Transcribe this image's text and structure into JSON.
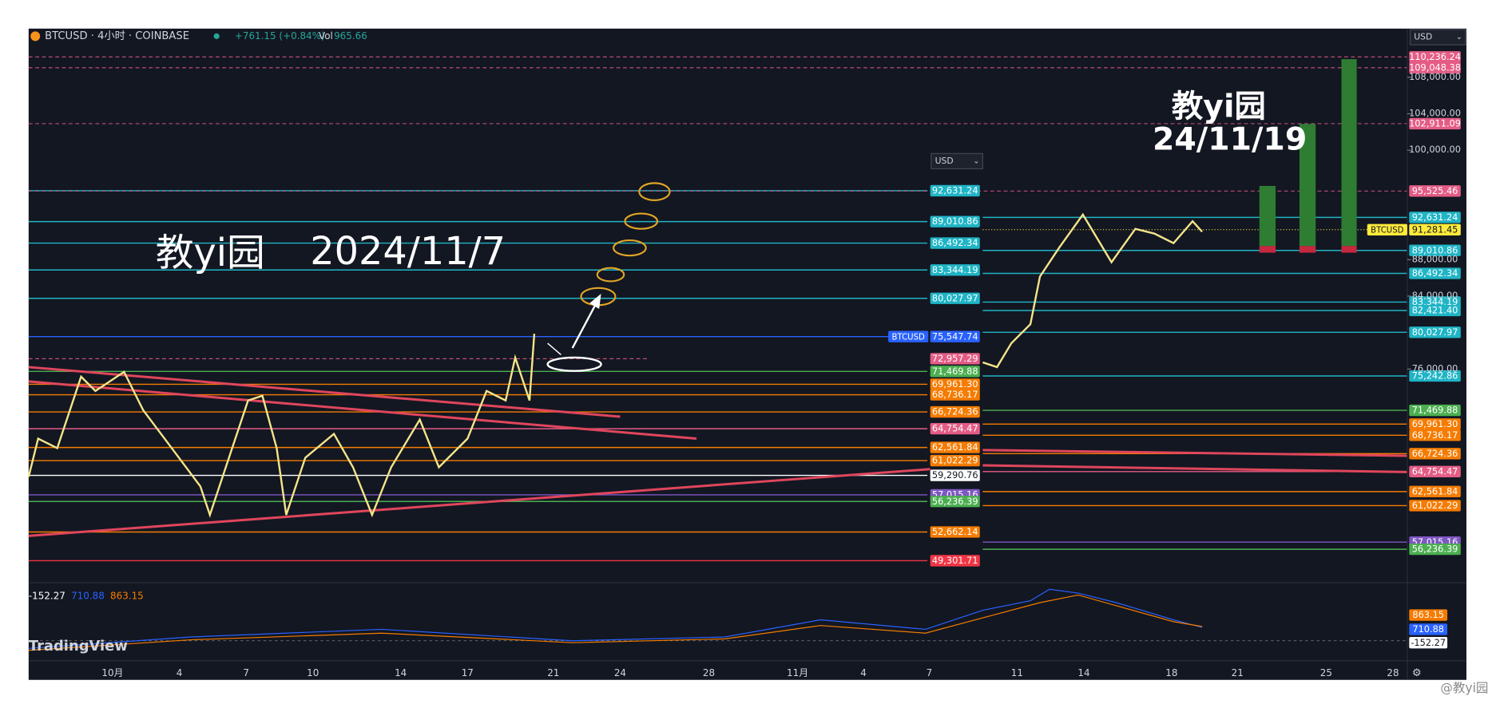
{
  "header": {
    "symbol": "BTCUSD · 4小时 · COINBASE",
    "change": "+761.15 (+0.84%)",
    "vol_label": "Vol",
    "volume": "965.66"
  },
  "currency": [
    "USD",
    "USD"
  ],
  "left_pane": {
    "annotations": [
      "教yi园",
      "2024/11/7"
    ],
    "levels": [
      {
        "value": 92631.24,
        "label": "92,631.24",
        "color": "#1fb5c6"
      },
      {
        "value": 89010.86,
        "label": "89,010.86",
        "color": "#1fb5c6"
      },
      {
        "value": 86492.34,
        "label": "86,492.34",
        "color": "#1fb5c6"
      },
      {
        "value": 83344.19,
        "label": "83,344.19",
        "color": "#1fb5c6"
      },
      {
        "value": 80027.97,
        "label": "80,027.97",
        "color": "#1fb5c6"
      },
      {
        "value": 75547.74,
        "label": "75,547.74",
        "color": "#2962ff",
        "tag": "BTCUSD"
      },
      {
        "value": 72957.29,
        "label": "72,957.29",
        "color": "#e45c86",
        "style": "dashed"
      },
      {
        "value": 71469.88,
        "label": "71,469.88",
        "color": "#4caf50"
      },
      {
        "value": 69961.3,
        "label": "69,961.30",
        "color": "#f57c00"
      },
      {
        "value": 68736.17,
        "label": "68,736.17",
        "color": "#f57c00"
      },
      {
        "value": 66724.36,
        "label": "66,724.36",
        "color": "#f57c00"
      },
      {
        "value": 64754.47,
        "label": "64,754.47",
        "color": "#e45c86"
      },
      {
        "value": 62561.84,
        "label": "62,561.84",
        "color": "#f57c00"
      },
      {
        "value": 61022.29,
        "label": "61,022.29",
        "color": "#f57c00"
      },
      {
        "value": 59290.76,
        "label": "59,290.76",
        "color": "#ffffff"
      },
      {
        "value": 57015.16,
        "label": "57,015.16",
        "color": "#7e57c2"
      },
      {
        "value": 56236.39,
        "label": "56,236.39",
        "color": "#4caf50"
      },
      {
        "value": 52662.14,
        "label": "52,662.14",
        "color": "#f57c00"
      },
      {
        "value": 49301.71,
        "label": "49,301.71",
        "color": "#f23645"
      }
    ]
  },
  "right_pane": {
    "annotations": [
      "教yi园",
      "24/11/19"
    ],
    "axis_ticks": [
      {
        "value": 108000,
        "label": "108,000.00"
      },
      {
        "value": 104000,
        "label": "104,000.00"
      },
      {
        "value": 100000,
        "label": "100,000.00"
      },
      {
        "value": 88000,
        "label": "88,000.00"
      },
      {
        "value": 84000,
        "label": "84,000.00"
      },
      {
        "value": 76000,
        "label": "76,000.00"
      }
    ],
    "levels": [
      {
        "value": 110236.24,
        "label": "110,236.24",
        "color": "#e45c86",
        "style": "dashed"
      },
      {
        "value": 109048.38,
        "label": "109,048.38",
        "color": "#e45c86",
        "style": "dashed"
      },
      {
        "value": 102911.09,
        "label": "102,911.09",
        "color": "#e45c86",
        "style": "dashed"
      },
      {
        "value": 95525.46,
        "label": "95,525.46",
        "color": "#e45c86",
        "style": "dashed"
      },
      {
        "value": 92631.24,
        "label": "92,631.24",
        "color": "#1fb5c6"
      },
      {
        "value": 91281.45,
        "label": "91,281.45",
        "color": "#ffeb3b",
        "tag": "BTCUSD",
        "style": "dotted"
      },
      {
        "value": 89010.86,
        "label": "89,010.86",
        "color": "#1fb5c6"
      },
      {
        "value": 86492.34,
        "label": "86,492.34",
        "color": "#1fb5c6"
      },
      {
        "value": 83344.19,
        "label": "83,344.19",
        "color": "#1fb5c6"
      },
      {
        "value": 82421.4,
        "label": "82,421.40",
        "color": "#1fb5c6"
      },
      {
        "value": 80027.97,
        "label": "80,027.97",
        "color": "#1fb5c6"
      },
      {
        "value": 75242.86,
        "label": "75,242.86",
        "color": "#1fb5c6"
      },
      {
        "value": 71469.88,
        "label": "71,469.88",
        "color": "#4caf50"
      },
      {
        "value": 69961.3,
        "label": "69,961.30",
        "color": "#f57c00"
      },
      {
        "value": 68736.17,
        "label": "68,736.17",
        "color": "#f57c00"
      },
      {
        "value": 66724.36,
        "label": "66,724.36",
        "color": "#f57c00"
      },
      {
        "value": 64754.47,
        "label": "64,754.47",
        "color": "#e45c86"
      },
      {
        "value": 62561.84,
        "label": "62,561.84",
        "color": "#f57c00"
      },
      {
        "value": 61022.29,
        "label": "61,022.29",
        "color": "#f57c00"
      },
      {
        "value": 57015.16,
        "label": "57,015.16",
        "color": "#7e57c2"
      },
      {
        "value": 56236.39,
        "label": "56,236.39",
        "color": "#4caf50"
      }
    ]
  },
  "macd": {
    "values": [
      {
        "label": "-152.27",
        "color": "#ffffff"
      },
      {
        "label": "710.88",
        "color": "#2962ff"
      },
      {
        "label": "863.15",
        "color": "#f57c00"
      }
    ]
  },
  "x_axis": [
    "10月",
    "4",
    "7",
    "10",
    "14",
    "17",
    "21",
    "24",
    "28",
    "11月",
    "4",
    "7",
    "11",
    "14",
    "18",
    "21",
    "25",
    "28"
  ],
  "brand": "TradingView",
  "watermark": "@教yi园"
}
